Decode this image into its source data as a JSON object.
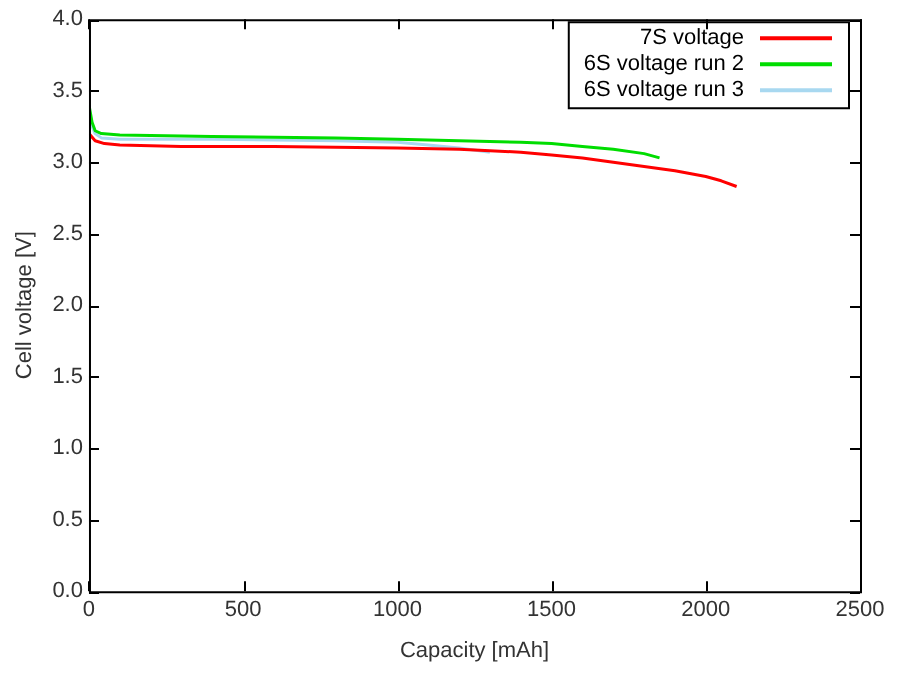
{
  "chart_data": {
    "type": "line",
    "xlabel": "Capacity [mAh]",
    "ylabel": "Cell voltage [V]",
    "xlim": [
      0,
      2500
    ],
    "xticks": [
      0,
      500,
      1000,
      1500,
      2000,
      2500
    ],
    "ylim": [
      0,
      4
    ],
    "yticks": [
      {
        "value": 0,
        "label": "0.0"
      },
      {
        "value": 0.5,
        "label": "0.5"
      },
      {
        "value": 1,
        "label": "1.0"
      },
      {
        "value": 1.5,
        "label": "1.5"
      },
      {
        "value": 2,
        "label": "2.0"
      },
      {
        "value": 2.5,
        "label": "2.5"
      },
      {
        "value": 3,
        "label": "3.0"
      },
      {
        "value": 3.5,
        "label": "3.5"
      },
      {
        "value": 4,
        "label": "4.0"
      }
    ],
    "grid": false,
    "legend": "top right",
    "marker": "none",
    "line_style": "solid",
    "series": [
      {
        "name": "7S voltage",
        "color": "#ff0000",
        "x": [
          0,
          20,
          50,
          100,
          300,
          600,
          1000,
          1200,
          1300,
          1400,
          1500,
          1600,
          1700,
          1800,
          1900,
          2000,
          2050,
          2100
        ],
        "values": [
          3.2,
          3.15,
          3.13,
          3.12,
          3.11,
          3.11,
          3.1,
          3.09,
          3.08,
          3.07,
          3.05,
          3.03,
          3.0,
          2.97,
          2.94,
          2.9,
          2.87,
          2.83
        ]
      },
      {
        "name": "6S voltage run 2",
        "color": "#00dd00",
        "x": [
          0,
          10,
          20,
          40,
          100,
          400,
          800,
          1000,
          1200,
          1400,
          1500,
          1600,
          1700,
          1800,
          1850
        ],
        "values": [
          3.4,
          3.28,
          3.22,
          3.2,
          3.19,
          3.18,
          3.17,
          3.16,
          3.15,
          3.14,
          3.13,
          3.11,
          3.09,
          3.06,
          3.03
        ]
      },
      {
        "name": "6S voltage run 3",
        "color": "#a8d8f0",
        "x": [
          0,
          10,
          20,
          40,
          100,
          400,
          800,
          1000,
          1100,
          1200,
          1300
        ],
        "values": [
          3.35,
          3.25,
          3.2,
          3.17,
          3.16,
          3.16,
          3.15,
          3.14,
          3.12,
          3.1,
          3.07
        ]
      }
    ]
  }
}
